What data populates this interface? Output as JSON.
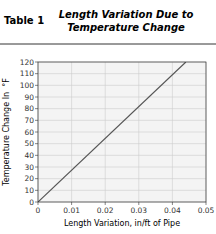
{
  "chart_data": {
    "type": "line",
    "title": "Length Variation Due to\nTemperature Change",
    "annotations": [
      "Table 1"
    ],
    "x_label": "Length Variation, in/ft of Pipe",
    "y_label": "Temperature Change In  °F",
    "x": [
      0,
      0.044
    ],
    "values": [
      0,
      120
    ],
    "color": "#555555",
    "xlim": [
      0,
      0.05
    ],
    "ylim": [
      0,
      120
    ],
    "xticks": [
      0,
      0.01,
      0.02,
      0.03,
      0.04,
      0.05
    ],
    "yticks": [
      0,
      10,
      20,
      30,
      40,
      50,
      60,
      70,
      80,
      90,
      100,
      110,
      120
    ],
    "grid": true
  }
}
